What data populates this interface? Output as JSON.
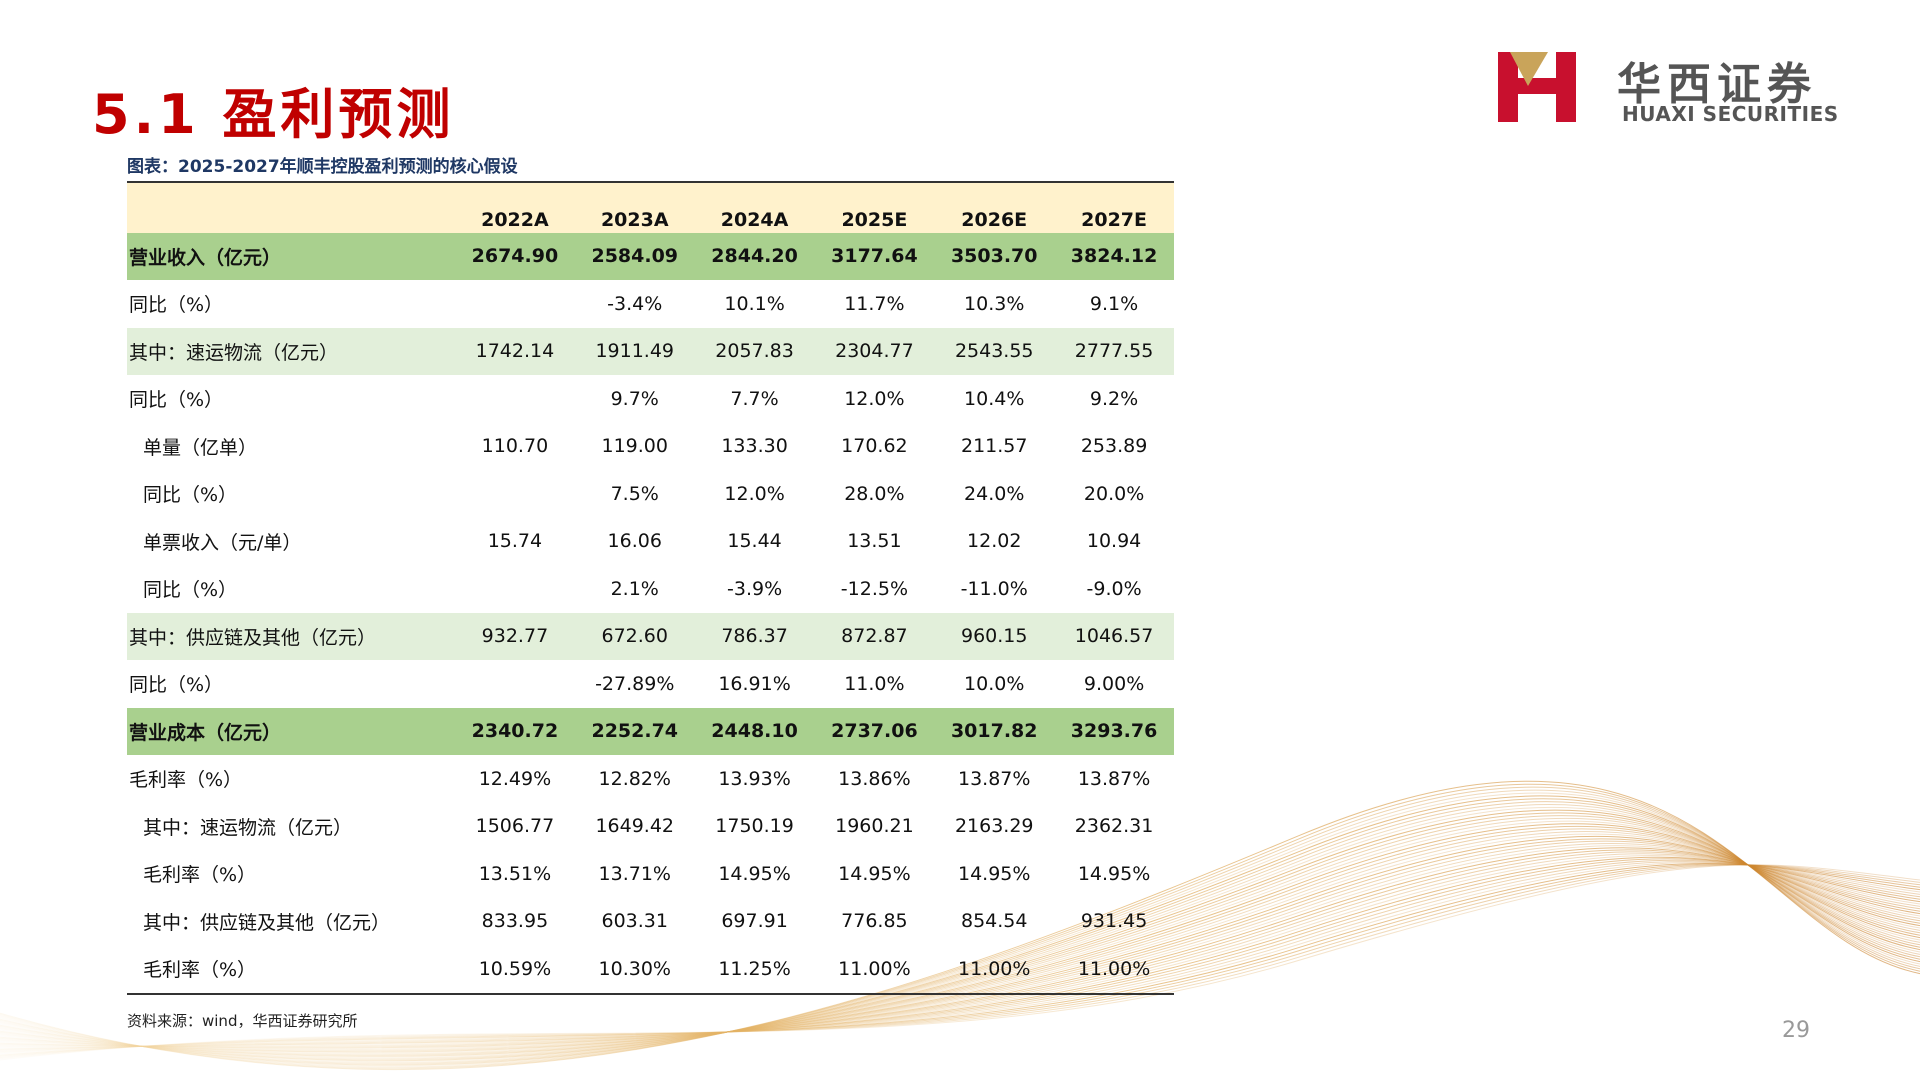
{
  "header": {
    "title": "5.1 盈利预测",
    "subtitle": "图表：2025-2027年顺丰控股盈利预测的核心假设",
    "logo_cn": "华西证券",
    "logo_en": "HUAXI SECURITIES"
  },
  "table": {
    "columns": [
      "2022A",
      "2023A",
      "2024A",
      "2025E",
      "2026E",
      "2027E"
    ],
    "rows": [
      [
        "营业收入（亿元）",
        "2674.90",
        "2584.09",
        "2844.20",
        "3177.64",
        "3503.70",
        "3824.12"
      ],
      [
        "同比（%）",
        null,
        "-3.4%",
        "10.1%",
        "11.7%",
        "10.3%",
        "9.1%"
      ],
      [
        "其中：速运物流（亿元）",
        "1742.14",
        "1911.49",
        "2057.83",
        "2304.77",
        "2543.55",
        "2777.55"
      ],
      [
        "同比（%）",
        null,
        "9.7%",
        "7.7%",
        "12.0%",
        "10.4%",
        "9.2%"
      ],
      [
        "单量（亿单）",
        "110.70",
        "119.00",
        "133.30",
        "170.62",
        "211.57",
        "253.89"
      ],
      [
        "同比（%）",
        null,
        "7.5%",
        "12.0%",
        "28.0%",
        "24.0%",
        "20.0%"
      ],
      [
        "单票收入（元/单）",
        "15.74",
        "16.06",
        "15.44",
        "13.51",
        "12.02",
        "10.94"
      ],
      [
        "同比（%）",
        null,
        "2.1%",
        "-3.9%",
        "-12.5%",
        "-11.0%",
        "-9.0%"
      ],
      [
        "其中：供应链及其他（亿元）",
        "932.77",
        "672.60",
        "786.37",
        "872.87",
        "960.15",
        "1046.57"
      ],
      [
        "同比（%）",
        null,
        "-27.89%",
        "16.91%",
        "11.0%",
        "10.0%",
        "9.00%"
      ],
      [
        "营业成本（亿元）",
        "2340.72",
        "2252.74",
        "2448.10",
        "2737.06",
        "3017.82",
        "3293.76"
      ],
      [
        "毛利率（%）",
        "12.49%",
        "12.82%",
        "13.93%",
        "13.86%",
        "13.87%",
        "13.87%"
      ],
      [
        "其中：速运物流（亿元）",
        "1506.77",
        "1649.42",
        "1750.19",
        "1960.21",
        "2163.29",
        "2362.31"
      ],
      [
        "毛利率（%）",
        "13.51%",
        "13.71%",
        "14.95%",
        "14.95%",
        "14.95%",
        "14.95%"
      ],
      [
        "其中：供应链及其他（亿元）",
        "833.95",
        "603.31",
        "697.91",
        "776.85",
        "854.54",
        "931.45"
      ],
      [
        "毛利率（%）",
        "10.59%",
        "10.30%",
        "11.25%",
        "11.00%",
        "11.00%",
        "11.00%"
      ]
    ]
  },
  "source": "资料来源：wind，华西证券研究所",
  "page_number": "29"
}
